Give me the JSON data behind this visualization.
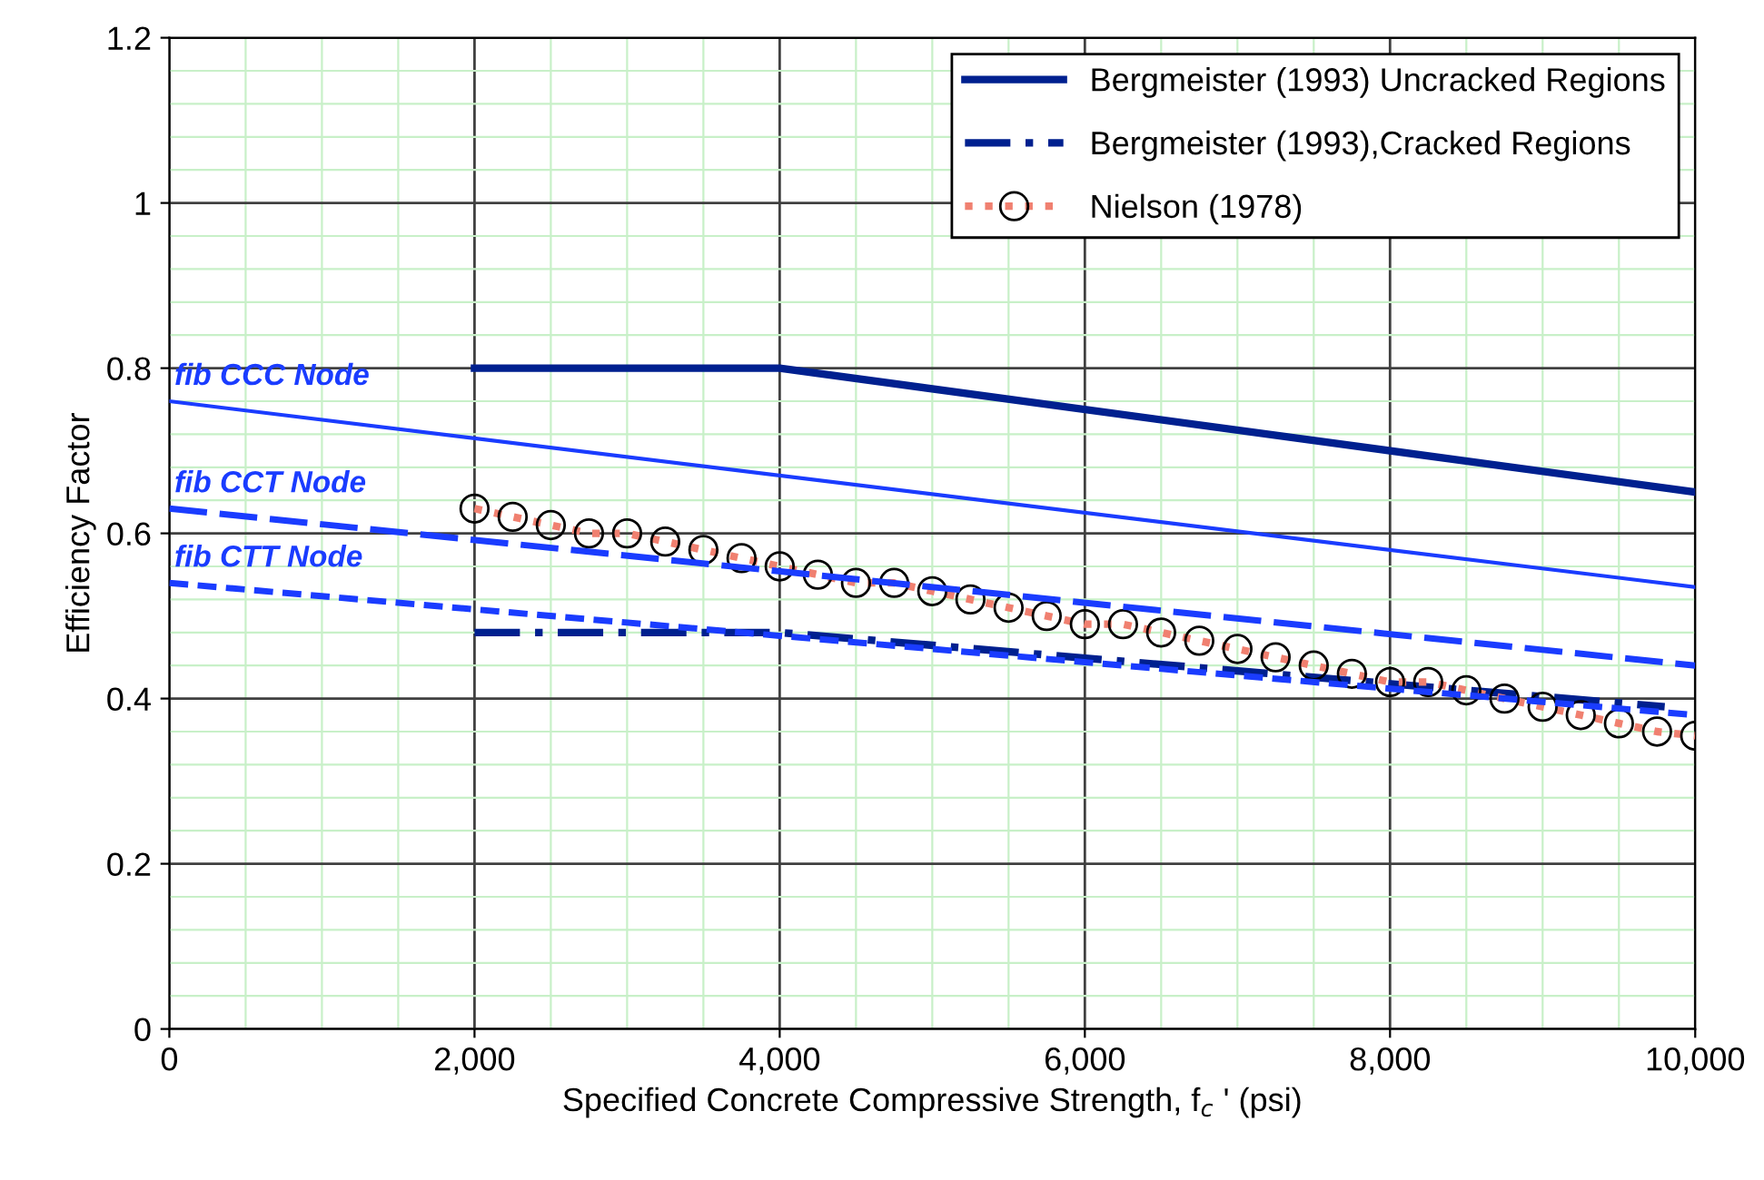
{
  "chart_data": {
    "type": "line",
    "xlabel": "Specified Concrete Compressive Strength, f$_{c}$ ' (psi)",
    "ylabel": "Efficiency Factor",
    "xlim": [
      0,
      10000
    ],
    "xticks": [
      {
        "value": 0,
        "label": "0"
      },
      {
        "value": 2000,
        "label": "2,000"
      },
      {
        "value": 4000,
        "label": "4,000"
      },
      {
        "value": 6000,
        "label": "6,000"
      },
      {
        "value": 8000,
        "label": "8,000"
      },
      {
        "value": 10000,
        "label": "10,000"
      }
    ],
    "ylim": [
      0,
      1.2
    ],
    "yticks": [
      0,
      0.2,
      0.4,
      0.6,
      0.8,
      1,
      1.2
    ],
    "grid": true,
    "legend": "top right",
    "series": [
      {
        "name": "Bergmeister (1993) Uncracked Regions",
        "color": "#00208f",
        "x": [
          2000,
          4000,
          10000
        ],
        "values": [
          0.8,
          0.8,
          0.65
        ],
        "line_style": "solid",
        "marker": "none"
      },
      {
        "name": "Bergmeister (1993),Cracked Regions",
        "color": "#00208f",
        "x": [
          2000,
          4000,
          9800
        ],
        "values": [
          0.48,
          0.48,
          0.39
        ],
        "line_style": "dashed",
        "marker": "none"
      },
      {
        "name": "Nielson (1978)",
        "color": "#f08070",
        "x": [
          2000,
          2250,
          2500,
          2750,
          3000,
          3250,
          3500,
          3750,
          4000,
          4250,
          4500,
          4750,
          5000,
          5250,
          5500,
          5750,
          6000,
          6250,
          6500,
          6750,
          7000,
          7250,
          7500,
          7750,
          8000,
          8250,
          8500,
          8750,
          9000,
          9250,
          9500,
          9750,
          10000
        ],
        "values": [
          0.63,
          0.62,
          0.61,
          0.6,
          0.6,
          0.59,
          0.58,
          0.57,
          0.56,
          0.55,
          0.54,
          0.54,
          0.53,
          0.52,
          0.51,
          0.5,
          0.49,
          0.49,
          0.48,
          0.47,
          0.46,
          0.45,
          0.44,
          0.43,
          0.42,
          0.42,
          0.41,
          0.4,
          0.39,
          0.38,
          0.37,
          0.36,
          0.355
        ],
        "line_style": "dotted",
        "marker": "circle"
      },
      {
        "color": "#1a3cff",
        "x": [
          0,
          10000
        ],
        "values": [
          0.76,
          0.535
        ],
        "line_style": "solid",
        "marker": "none"
      },
      {
        "color": "#1a3cff",
        "x": [
          0,
          10000
        ],
        "values": [
          0.63,
          0.44
        ],
        "line_style": "dashed",
        "marker": "none"
      },
      {
        "color": "#1a3cff",
        "x": [
          0,
          10000
        ],
        "values": [
          0.54,
          0.38
        ],
        "line_style": "dotted",
        "marker": "none"
      }
    ],
    "annotations": [
      "fib CCC Node",
      "fib CCT Node",
      "fib CTT Node"
    ]
  }
}
